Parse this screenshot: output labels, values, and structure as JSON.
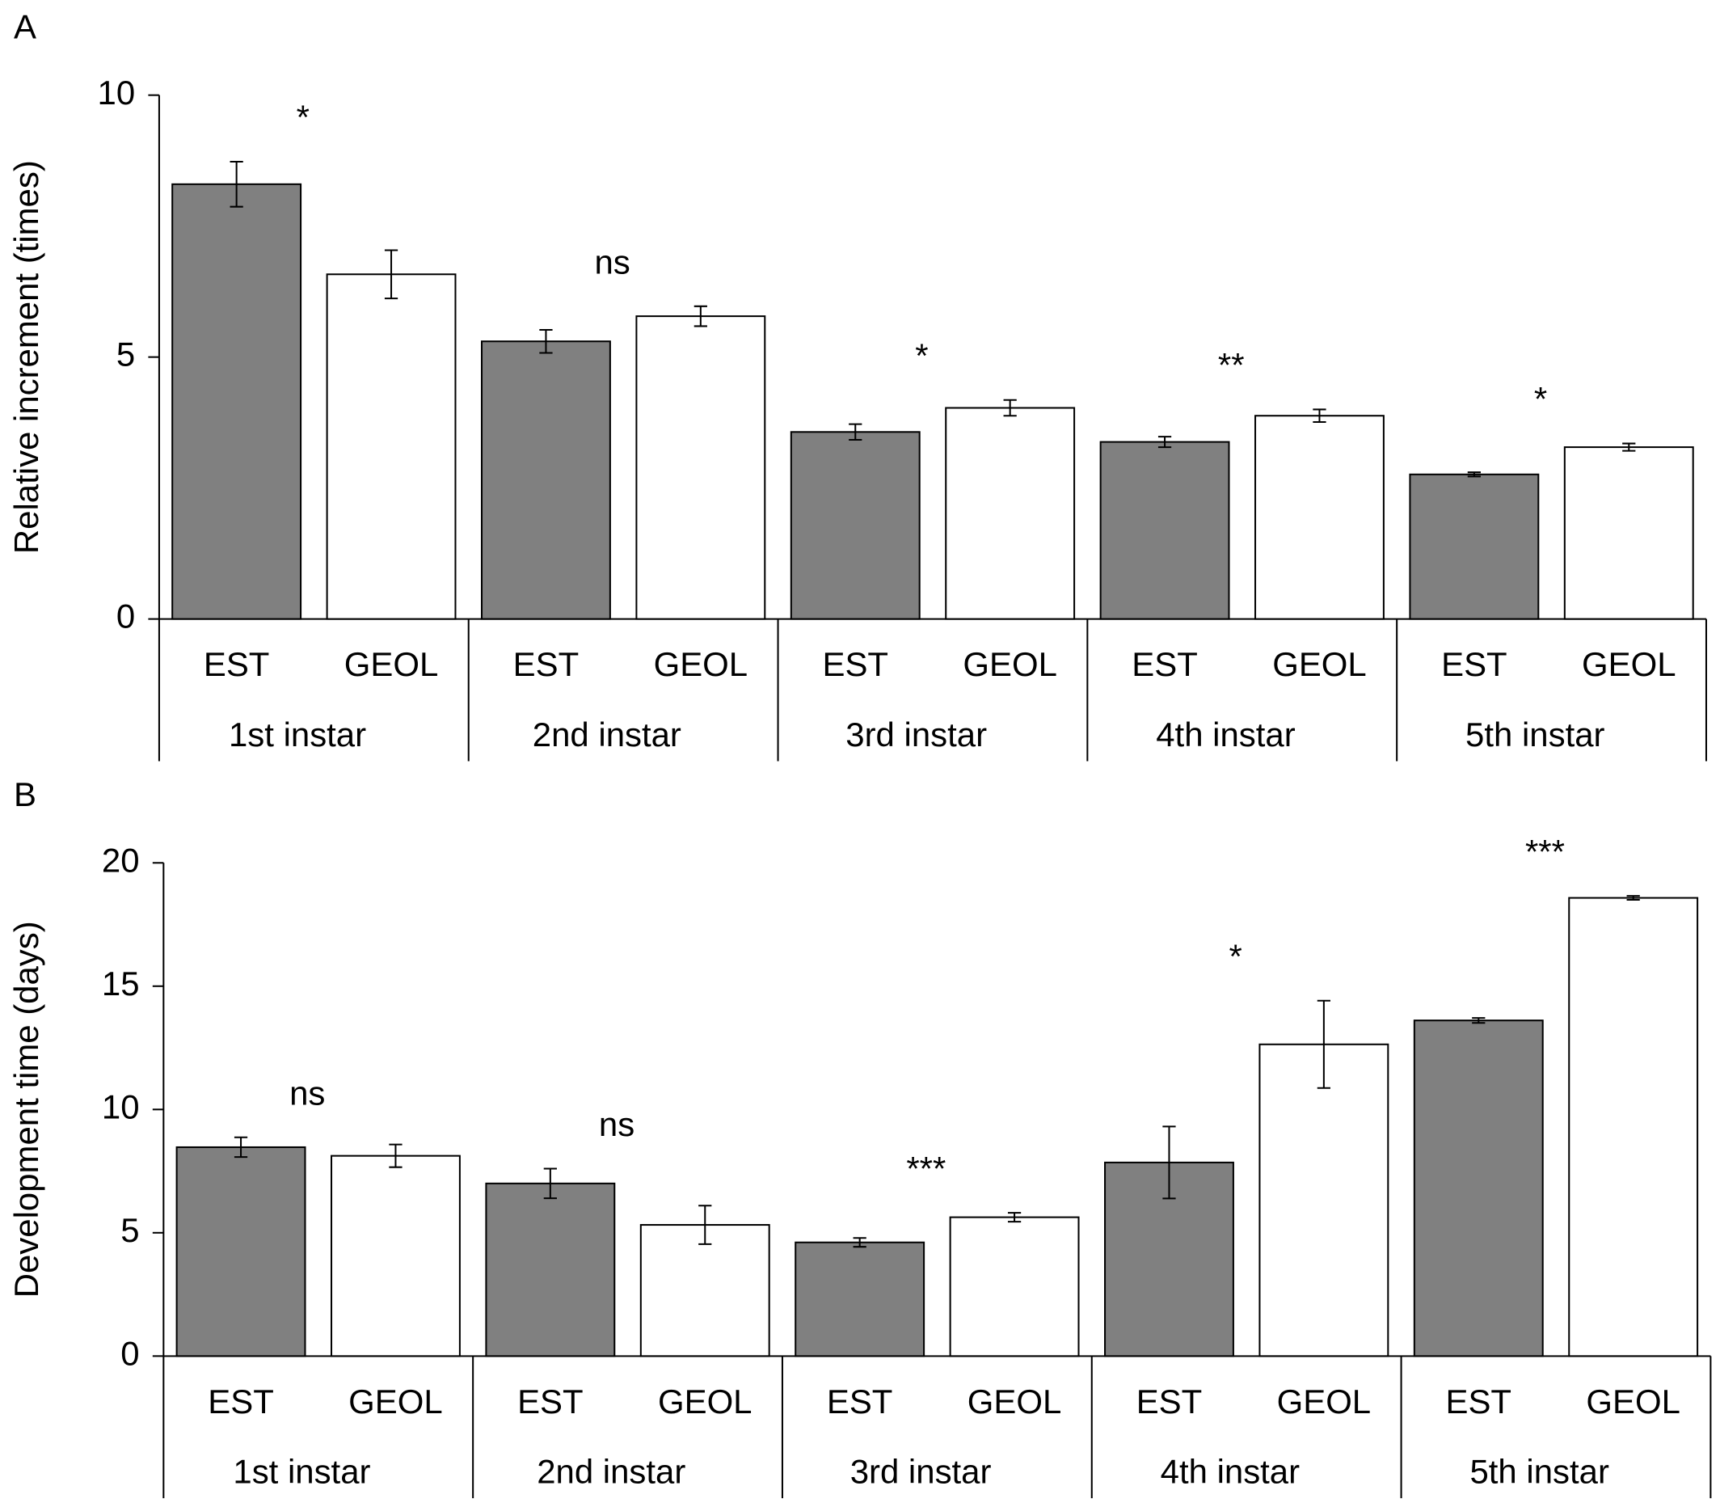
{
  "chart_data": [
    {
      "type": "bar",
      "panel": "A",
      "ylabel": "Relative increment (times)",
      "categories": [
        "1st instar",
        "2nd instar",
        "3rd instar",
        "4th instar",
        "5th instar"
      ],
      "series": [
        {
          "name": "EST",
          "color": "#808080",
          "values": [
            8.3,
            5.3,
            3.57,
            3.38,
            2.76
          ],
          "errors": [
            0.43,
            0.22,
            0.15,
            0.1,
            0.04
          ]
        },
        {
          "name": "GEOL",
          "color": "#ffffff",
          "values": [
            6.58,
            5.78,
            4.03,
            3.88,
            3.28
          ],
          "errors": [
            0.46,
            0.19,
            0.15,
            0.12,
            0.07
          ]
        }
      ],
      "annotations": [
        "*",
        "ns",
        "*",
        "**",
        "*"
      ],
      "ylim": [
        0,
        10
      ],
      "yticks": [
        0,
        5,
        10
      ]
    },
    {
      "type": "bar",
      "panel": "B",
      "ylabel": "Development time (days)",
      "categories": [
        "1st instar",
        "2nd instar",
        "3rd instar",
        "4th instar",
        "5th instar"
      ],
      "series": [
        {
          "name": "EST",
          "color": "#808080",
          "values": [
            8.47,
            7.0,
            4.61,
            7.85,
            13.61
          ],
          "errors": [
            0.4,
            0.6,
            0.18,
            1.46,
            0.1
          ]
        },
        {
          "name": "GEOL",
          "color": "#ffffff",
          "values": [
            8.12,
            5.32,
            5.63,
            12.64,
            18.58
          ],
          "errors": [
            0.46,
            0.78,
            0.18,
            1.77,
            0.08
          ]
        }
      ],
      "annotations": [
        "ns",
        "ns",
        "***",
        "*",
        "***"
      ],
      "ylim": [
        0,
        20
      ],
      "yticks": [
        0,
        5,
        10,
        15,
        20
      ]
    }
  ]
}
